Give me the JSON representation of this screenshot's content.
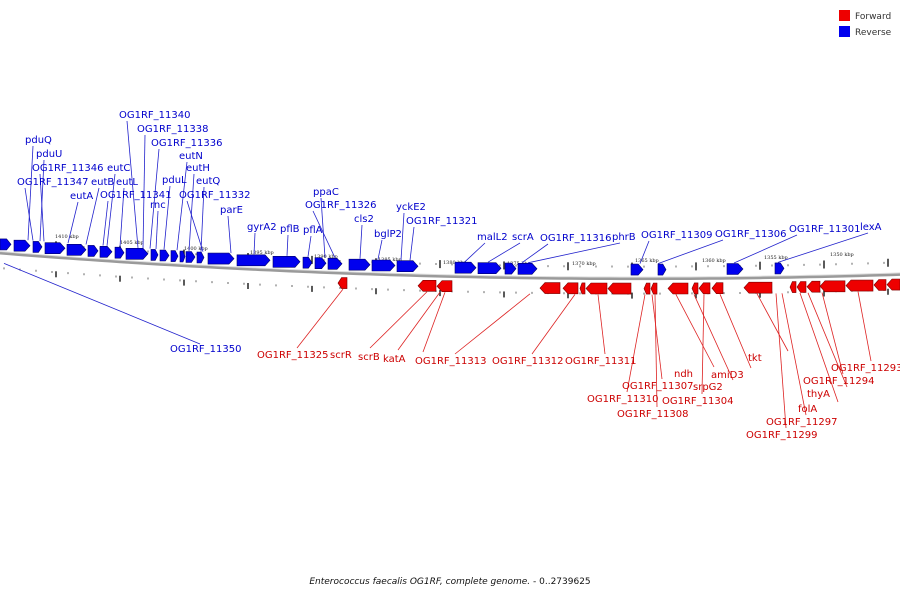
{
  "legend": {
    "forward": {
      "label": "Forward",
      "color": "#ee0000"
    },
    "reverse": {
      "label": "Reverse",
      "color": "#0000ee"
    }
  },
  "caption": {
    "organism": "Enterococcus faecalis OG1RF, complete genome.",
    "range": " - 0..2739625"
  },
  "scale_labels": [
    "1410 kbp",
    "1405 kbp",
    "1400 kbp",
    "1395 kbp",
    "1390 kbp",
    "1385 kbp",
    "1380 kbp",
    "1375 kbp",
    "1370 kbp",
    "1365 kbp",
    "1360 kbp",
    "1355 kbp",
    "1350 kbp"
  ],
  "reverse_genes": [
    "pduQ",
    "pduU",
    "OG1RF_11346",
    "OG1RF_11347",
    "eutA",
    "eutB",
    "eutC",
    "eutL",
    "OG1RF_11341",
    "OG1RF_11340",
    "OG1RF_11338",
    "OG1RF_11336",
    "rnc",
    "pduL",
    "eutN",
    "eutH",
    "eutQ",
    "OG1RF_11332",
    "parE",
    "gyrA2",
    "pflB",
    "pflA",
    "ppaC",
    "OG1RF_11326",
    "cls2",
    "bglP2",
    "yckE2",
    "OG1RF_11321",
    "malL2",
    "scrA",
    "OG1RF_11316",
    "phrB",
    "OG1RF_11309",
    "OG1RF_11306",
    "OG1RF_11301",
    "lexA",
    "OG1RF_11350"
  ],
  "forward_genes": [
    "OG1RF_11325",
    "scrR",
    "scrB",
    "katA",
    "OG1RF_11313",
    "OG1RF_11312",
    "OG1RF_11311",
    "OG1RF_11307",
    "OG1RF_11310",
    "OG1RF_11308",
    "ndh",
    "srpG2",
    "OG1RF_11304",
    "amiD3",
    "tkt",
    "OG1RF_11299",
    "OG1RF_11297",
    "folA",
    "thyA",
    "OG1RF_11294",
    "OG1RF_11293"
  ]
}
